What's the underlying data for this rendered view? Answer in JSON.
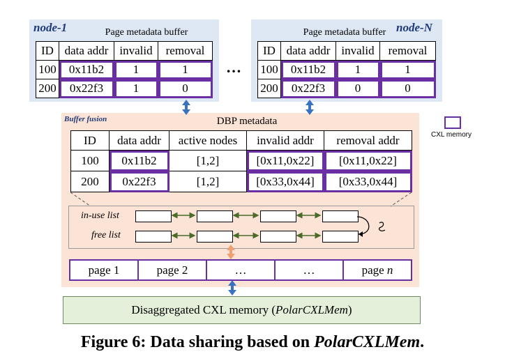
{
  "node1": {
    "label": "node-1",
    "title": "Page metadata buffer",
    "headers": [
      "ID",
      "data addr",
      "invalid",
      "removal"
    ],
    "rows": [
      [
        "100",
        "0x11b2",
        "1",
        "1"
      ],
      [
        "200",
        "0x22f3",
        "1",
        "0"
      ]
    ]
  },
  "ellipsis": "…",
  "nodeN": {
    "label": "node-N",
    "title": "Page metadata buffer",
    "headers": [
      "ID",
      "data addr",
      "invalid",
      "removal"
    ],
    "rows": [
      [
        "100",
        "0x11b2",
        "1",
        "1"
      ],
      [
        "200",
        "0x22f3",
        "0",
        "0"
      ]
    ]
  },
  "fusion": {
    "label": "Buffer fusion",
    "title": "DBP metadata",
    "headers": [
      "ID",
      "data addr",
      "active nodes",
      "invalid addr",
      "removal addr"
    ],
    "rows": [
      [
        "100",
        "0x11b2",
        "[1,2]",
        "[0x11,0x22]",
        "[0x11,0x22]"
      ],
      [
        "200",
        "0x22f3",
        "[1,2]",
        "[0x33,0x44]",
        "[0x33,0x44]"
      ]
    ],
    "inuse_label": "in-use list",
    "free_label": "free list",
    "pages": [
      "page 1",
      "page 2",
      "…",
      "…",
      "page n"
    ]
  },
  "legend": {
    "label": "CXL memory",
    "color": "#6b2fa3"
  },
  "cxl_memory": {
    "prefix": "Disaggregated CXL memory (",
    "name": "PolarCXLMem",
    "suffix": ")"
  },
  "caption": {
    "prefix": "Figure 6: Data sharing based on ",
    "name": "PolarCXLMem",
    "suffix": "."
  }
}
